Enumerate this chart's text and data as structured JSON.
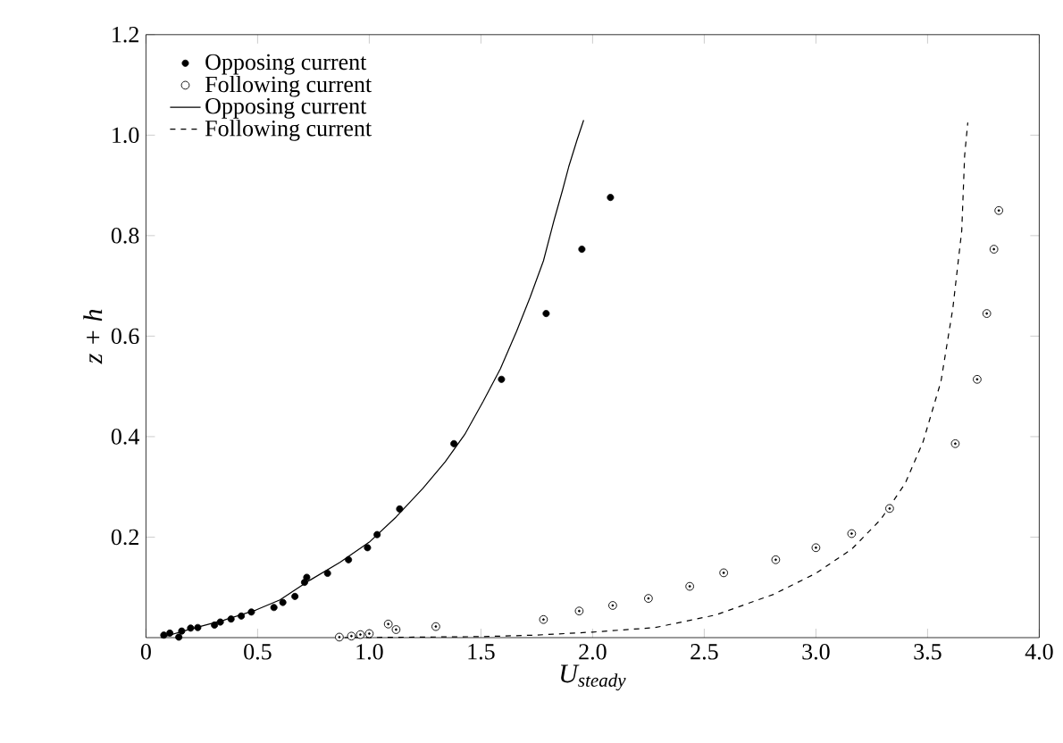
{
  "chart_data": {
    "type": "scatter",
    "xlabel": "U$_{steady}$",
    "ylabel": "z + h",
    "xlim": [
      0,
      4
    ],
    "ylim": [
      0,
      1.2
    ],
    "xticks": [
      0,
      0.5,
      {
        "value": 1,
        "label": "1.0"
      },
      1.5,
      {
        "value": 2,
        "label": "2.0"
      },
      2.5,
      {
        "value": 3,
        "label": "3.0"
      },
      3.5,
      {
        "value": 4,
        "label": "4.0"
      }
    ],
    "yticks": [
      0.2,
      0.4,
      0.6,
      0.8,
      {
        "value": 1,
        "label": "1.0"
      },
      1.2
    ],
    "legend": "top left",
    "grid": false,
    "series": [
      {
        "name": "Opposing current",
        "marker": "circle",
        "color": "#000000",
        "x": [
          0.08,
          0.107,
          0.147,
          0.16,
          0.2,
          0.232,
          0.307,
          0.333,
          0.381,
          0.427,
          0.472,
          0.573,
          0.613,
          0.667,
          0.71,
          0.72,
          0.813,
          0.907,
          0.992,
          1.035,
          1.136,
          1.379,
          1.592,
          1.792,
          1.952,
          2.08
        ],
        "values": [
          0.005,
          0.009,
          0.001,
          0.013,
          0.019,
          0.02,
          0.025,
          0.031,
          0.037,
          0.043,
          0.051,
          0.06,
          0.07,
          0.082,
          0.11,
          0.12,
          0.128,
          0.155,
          0.179,
          0.205,
          0.256,
          0.386,
          0.514,
          0.645,
          0.773,
          0.876
        ]
      },
      {
        "name": "Following current",
        "marker": "circle",
        "color": "#000000",
        "x": [
          0.866,
          0.92,
          0.96,
          1.0,
          1.085,
          1.12,
          1.298,
          1.78,
          1.94,
          2.09,
          2.25,
          2.435,
          2.587,
          2.82,
          3.0,
          3.16,
          3.33,
          3.624,
          3.722,
          3.765,
          3.797,
          3.819
        ],
        "values": [
          0.001,
          0.003,
          0.006,
          0.008,
          0.027,
          0.016,
          0.022,
          0.036,
          0.053,
          0.064,
          0.078,
          0.102,
          0.129,
          0.155,
          0.179,
          0.207,
          0.257,
          0.386,
          0.514,
          0.645,
          0.773,
          0.85
        ]
      },
      {
        "name": "Opposing current",
        "type": "line",
        "line_style": "solid",
        "marker": "none",
        "color": "#000000",
        "x": [
          0.067,
          0.2,
          0.35,
          0.493,
          0.6,
          0.733,
          0.87,
          1.0,
          1.12,
          1.24,
          1.34,
          1.427,
          1.51,
          1.587,
          1.66,
          1.72,
          1.78,
          1.827,
          1.865,
          1.893,
          1.93,
          1.96
        ],
        "values": [
          0.0,
          0.017,
          0.035,
          0.055,
          0.075,
          0.114,
          0.15,
          0.19,
          0.24,
          0.297,
          0.35,
          0.404,
          0.47,
          0.535,
          0.61,
          0.677,
          0.75,
          0.83,
          0.89,
          0.937,
          0.99,
          1.03
        ]
      },
      {
        "name": "Following current",
        "type": "line",
        "line_style": "dashed",
        "marker": "none",
        "color": "#000000",
        "x": [
          0.89,
          1.2,
          1.5,
          1.746,
          2.0,
          2.28,
          2.55,
          2.81,
          3.0,
          3.16,
          3.29,
          3.4,
          3.48,
          3.56,
          3.613,
          3.653,
          3.666,
          3.68
        ],
        "values": [
          0.0,
          0.001,
          0.002,
          0.005,
          0.011,
          0.02,
          0.045,
          0.086,
          0.128,
          0.176,
          0.235,
          0.307,
          0.39,
          0.51,
          0.655,
          0.81,
          0.96,
          1.025
        ]
      }
    ]
  }
}
